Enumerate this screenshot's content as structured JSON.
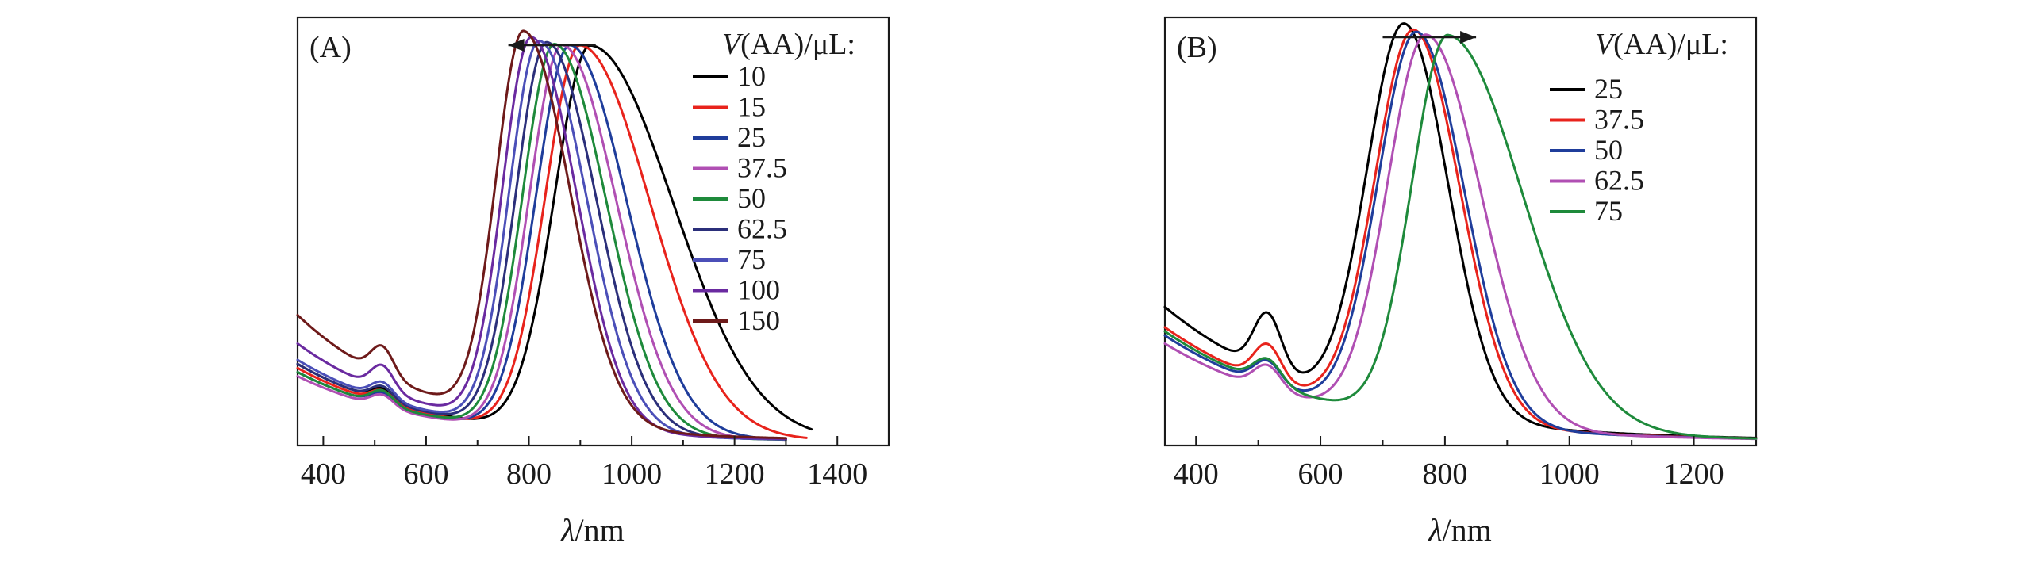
{
  "chart_data": [
    {
      "type": "line",
      "panel_label": "(A)",
      "xlabel_symbol": "λ",
      "xlabel_unit": "/nm",
      "ylabel": "",
      "xlim": [
        350,
        1500
      ],
      "ylim": [
        0,
        1.05
      ],
      "xticks": [
        400,
        600,
        800,
        1000,
        1200,
        1400
      ],
      "legend_title_var": "V",
      "legend_title_rest": "(AA)/μL:",
      "arrow_direction": "left",
      "arrow_from": 930,
      "arrow_to": 760,
      "series": [
        {
          "name": "10",
          "color": "#000000",
          "peak": 920,
          "wl": 70,
          "wr": 160,
          "base": 0.19,
          "b600": 0.07,
          "shoulder": 0.03,
          "end": 1350
        },
        {
          "name": "15",
          "color": "#e8231c",
          "peak": 900,
          "wl": 68,
          "wr": 135,
          "base": 0.18,
          "b600": 0.065,
          "shoulder": 0.03,
          "end": 1340
        },
        {
          "name": "25",
          "color": "#1f3d9b",
          "peak": 880,
          "wl": 66,
          "wr": 110,
          "base": 0.17,
          "b600": 0.06,
          "shoulder": 0.03,
          "end": 1300
        },
        {
          "name": "37.5",
          "color": "#b04fb3",
          "peak": 865,
          "wl": 64,
          "wr": 105,
          "base": 0.16,
          "b600": 0.055,
          "shoulder": 0.03,
          "end": 1300
        },
        {
          "name": "50",
          "color": "#1e8a3b",
          "peak": 850,
          "wl": 62,
          "wr": 100,
          "base": 0.17,
          "b600": 0.06,
          "shoulder": 0.035,
          "end": 1300
        },
        {
          "name": "62.5",
          "color": "#2b2f7a",
          "peak": 835,
          "wl": 60,
          "wr": 96,
          "base": 0.19,
          "b600": 0.06,
          "shoulder": 0.035,
          "end": 1300
        },
        {
          "name": "75",
          "color": "#4b4fb8",
          "peak": 820,
          "wl": 58,
          "wr": 92,
          "base": 0.2,
          "b600": 0.065,
          "shoulder": 0.04,
          "end": 1300
        },
        {
          "name": "100",
          "color": "#6a2aa0",
          "peak": 805,
          "wl": 56,
          "wr": 88,
          "base": 0.24,
          "b600": 0.07,
          "shoulder": 0.06,
          "end": 1300
        },
        {
          "name": "150",
          "color": "#6e1a1a",
          "peak": 790,
          "wl": 54,
          "wr": 90,
          "base": 0.31,
          "b600": 0.1,
          "shoulder": 0.07,
          "end": 1300
        }
      ]
    },
    {
      "type": "line",
      "panel_label": "(B)",
      "xlabel_symbol": "λ",
      "xlabel_unit": "/nm",
      "ylabel": "",
      "xlim": [
        350,
        1300
      ],
      "ylim": [
        0,
        1.05
      ],
      "xticks": [
        400,
        600,
        800,
        1000,
        1200
      ],
      "legend_title_var": "V",
      "legend_title_rest": "(AA)/μL:",
      "arrow_direction": "right",
      "arrow_from": 700,
      "arrow_to": 850,
      "series": [
        {
          "name": "25",
          "color": "#000000",
          "peak": 735,
          "wl": 60,
          "wr": 70,
          "base": 0.33,
          "b600": 0.18,
          "shoulder": 0.14,
          "end": 1300
        },
        {
          "name": "37.5",
          "color": "#e8231c",
          "peak": 750,
          "wl": 62,
          "wr": 74,
          "base": 0.28,
          "b600": 0.12,
          "shoulder": 0.09,
          "end": 1300
        },
        {
          "name": "50",
          "color": "#1f3d9b",
          "peak": 755,
          "wl": 62,
          "wr": 76,
          "base": 0.26,
          "b600": 0.08,
          "shoulder": 0.06,
          "end": 1300
        },
        {
          "name": "62.5",
          "color": "#b04fb3",
          "peak": 770,
          "wl": 62,
          "wr": 88,
          "base": 0.24,
          "b600": 0.08,
          "shoulder": 0.06,
          "end": 1300
        },
        {
          "name": "75",
          "color": "#1e8a3b",
          "peak": 805,
          "wl": 58,
          "wr": 120,
          "base": 0.27,
          "b600": 0.08,
          "shoulder": 0.06,
          "end": 1300
        }
      ]
    }
  ]
}
